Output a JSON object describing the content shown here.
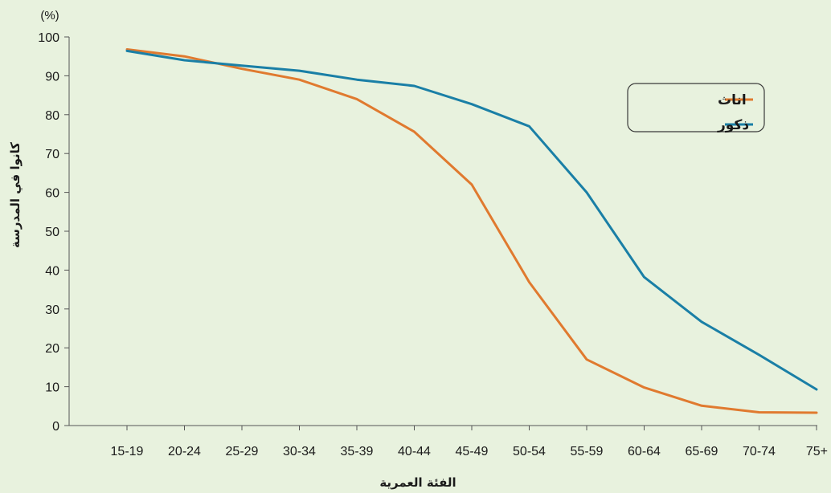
{
  "chart_data": {
    "type": "line",
    "unit_label": "(%)",
    "ylabel": "كانوا في المدرسة",
    "xlabel": "الفئة العمرية",
    "ylim": [
      0,
      100
    ],
    "yticks": [
      0,
      10,
      20,
      30,
      40,
      50,
      60,
      70,
      80,
      90,
      100
    ],
    "categories": [
      "15-19",
      "20-24",
      "25-29",
      "30-34",
      "35-39",
      "40-44",
      "45-49",
      "50-54",
      "55-59",
      "60-64",
      "65-69",
      "70-74",
      "75+"
    ],
    "series": [
      {
        "name": "اناث",
        "color": "#e07a2f",
        "values": [
          96.8,
          95.0,
          91.8,
          89.0,
          84.0,
          75.6,
          62.0,
          36.9,
          17.0,
          9.8,
          5.1,
          3.4,
          3.3
        ]
      },
      {
        "name": "ذكور",
        "color": "#1a7fa6",
        "values": [
          96.4,
          94.0,
          92.6,
          91.3,
          89.0,
          87.4,
          82.7,
          77.0,
          60.0,
          38.2,
          26.7,
          18.2,
          9.3
        ]
      }
    ],
    "grid": false,
    "legend_position": "top-right"
  }
}
